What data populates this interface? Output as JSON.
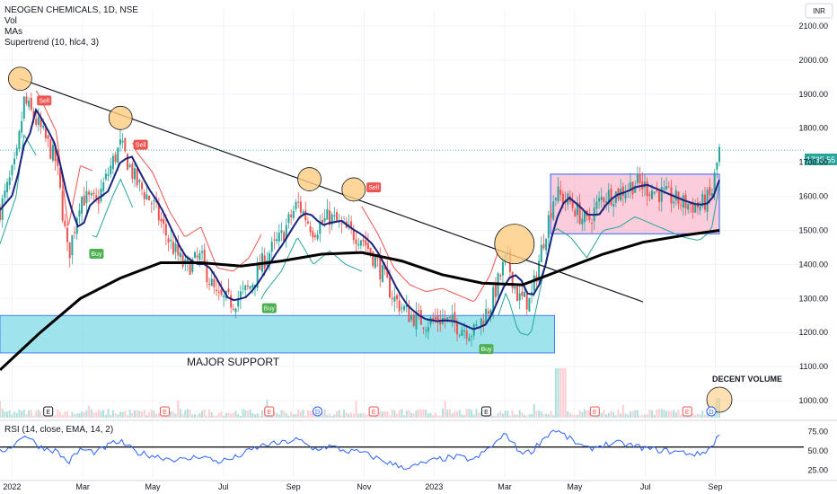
{
  "chart_data": {
    "type": "candlestick",
    "title": "NEOGEN CHEMICALS, 1D, NSE",
    "indicators": [
      "Vol",
      "MAs",
      "Supertrend (10, hlc4, 3)"
    ],
    "currency": "INR",
    "last_price": "1735.55",
    "y_ticks": [
      "2100.00",
      "2000.00",
      "1900.00",
      "1800.00",
      "1700.00",
      "1600.00",
      "1500.00",
      "1400.00",
      "1300.00",
      "1200.00",
      "1100.00",
      "1000.00"
    ],
    "ylim": [
      950,
      2150
    ],
    "x_ticks": [
      "2022",
      "Mar",
      "May",
      "Jul",
      "Sep",
      "Nov",
      "2023",
      "Mar",
      "May",
      "Jul",
      "Sep"
    ],
    "price_path": [
      {
        "t": 0.0,
        "p": 1560
      },
      {
        "t": 0.02,
        "p": 1700
      },
      {
        "t": 0.03,
        "p": 1880
      },
      {
        "t": 0.05,
        "p": 1800
      },
      {
        "t": 0.07,
        "p": 1700
      },
      {
        "t": 0.085,
        "p": 1420
      },
      {
        "t": 0.1,
        "p": 1600
      },
      {
        "t": 0.12,
        "p": 1580
      },
      {
        "t": 0.14,
        "p": 1700
      },
      {
        "t": 0.15,
        "p": 1750
      },
      {
        "t": 0.17,
        "p": 1640
      },
      {
        "t": 0.19,
        "p": 1580
      },
      {
        "t": 0.21,
        "p": 1470
      },
      {
        "t": 0.23,
        "p": 1390
      },
      {
        "t": 0.25,
        "p": 1420
      },
      {
        "t": 0.27,
        "p": 1300
      },
      {
        "t": 0.29,
        "p": 1290
      },
      {
        "t": 0.31,
        "p": 1330
      },
      {
        "t": 0.33,
        "p": 1420
      },
      {
        "t": 0.35,
        "p": 1480
      },
      {
        "t": 0.37,
        "p": 1580
      },
      {
        "t": 0.39,
        "p": 1500
      },
      {
        "t": 0.41,
        "p": 1540
      },
      {
        "t": 0.43,
        "p": 1500
      },
      {
        "t": 0.45,
        "p": 1480
      },
      {
        "t": 0.47,
        "p": 1400
      },
      {
        "t": 0.49,
        "p": 1300
      },
      {
        "t": 0.51,
        "p": 1250
      },
      {
        "t": 0.53,
        "p": 1230
      },
      {
        "t": 0.55,
        "p": 1240
      },
      {
        "t": 0.57,
        "p": 1220
      },
      {
        "t": 0.59,
        "p": 1200
      },
      {
        "t": 0.61,
        "p": 1280
      },
      {
        "t": 0.63,
        "p": 1420
      },
      {
        "t": 0.645,
        "p": 1300
      },
      {
        "t": 0.66,
        "p": 1290
      },
      {
        "t": 0.675,
        "p": 1460
      },
      {
        "t": 0.69,
        "p": 1610
      },
      {
        "t": 0.71,
        "p": 1580
      },
      {
        "t": 0.73,
        "p": 1520
      },
      {
        "t": 0.75,
        "p": 1600
      },
      {
        "t": 0.77,
        "p": 1610
      },
      {
        "t": 0.79,
        "p": 1640
      },
      {
        "t": 0.81,
        "p": 1620
      },
      {
        "t": 0.83,
        "p": 1600
      },
      {
        "t": 0.85,
        "p": 1580
      },
      {
        "t": 0.87,
        "p": 1570
      },
      {
        "t": 0.885,
        "p": 1600
      },
      {
        "t": 0.895,
        "p": 1735
      }
    ],
    "ma_200_path": [
      {
        "t": 0.0,
        "p": 1090
      },
      {
        "t": 0.05,
        "p": 1200
      },
      {
        "t": 0.1,
        "p": 1300
      },
      {
        "t": 0.15,
        "p": 1360
      },
      {
        "t": 0.2,
        "p": 1405
      },
      {
        "t": 0.25,
        "p": 1405
      },
      {
        "t": 0.3,
        "p": 1395
      },
      {
        "t": 0.35,
        "p": 1410
      },
      {
        "t": 0.4,
        "p": 1430
      },
      {
        "t": 0.45,
        "p": 1435
      },
      {
        "t": 0.5,
        "p": 1410
      },
      {
        "t": 0.55,
        "p": 1370
      },
      {
        "t": 0.6,
        "p": 1345
      },
      {
        "t": 0.65,
        "p": 1340
      },
      {
        "t": 0.7,
        "p": 1385
      },
      {
        "t": 0.75,
        "p": 1430
      },
      {
        "t": 0.8,
        "p": 1465
      },
      {
        "t": 0.85,
        "p": 1485
      },
      {
        "t": 0.895,
        "p": 1500
      }
    ],
    "trendline": {
      "from": {
        "t": 0.025,
        "p": 1945
      },
      "to": {
        "t": 0.8,
        "p": 1290
      }
    },
    "resistance_touches": [
      {
        "t": 0.025,
        "p": 1945
      },
      {
        "t": 0.15,
        "p": 1830
      },
      {
        "t": 0.385,
        "p": 1650
      },
      {
        "t": 0.44,
        "p": 1620
      },
      {
        "t": 0.64,
        "p": 1460
      }
    ],
    "major_support": {
      "price_from": 1140,
      "price_to": 1250,
      "t_from": 0.0,
      "t_to": 0.69,
      "label": "MAJOR SUPPORT"
    },
    "consolidation_box": {
      "price_from": 1490,
      "price_to": 1665,
      "t_from": 0.685,
      "t_to": 0.895
    },
    "signals": [
      {
        "label": "Sell",
        "t": 0.055,
        "p": 1880,
        "type": "sell"
      },
      {
        "label": "Sell",
        "t": 0.175,
        "p": 1750,
        "type": "sell"
      },
      {
        "label": "Sell",
        "t": 0.465,
        "p": 1625,
        "type": "sell"
      },
      {
        "label": "Buy",
        "t": 0.12,
        "p": 1430,
        "type": "buy"
      },
      {
        "label": "Buy",
        "t": 0.335,
        "p": 1270,
        "type": "buy"
      },
      {
        "label": "Buy",
        "t": 0.605,
        "p": 1150,
        "type": "buy"
      }
    ],
    "events": [
      {
        "label": "E",
        "t": 0.06,
        "type": "earnings"
      },
      {
        "label": "E",
        "t": 0.205,
        "type": "div"
      },
      {
        "label": "E",
        "t": 0.335,
        "type": "div"
      },
      {
        "label": "D",
        "t": 0.395,
        "type": "dividend"
      },
      {
        "label": "E",
        "t": 0.465,
        "type": "div"
      },
      {
        "label": "E",
        "t": 0.605,
        "type": "earnings"
      },
      {
        "label": "E",
        "t": 0.74,
        "type": "div"
      },
      {
        "label": "E",
        "t": 0.855,
        "type": "div"
      },
      {
        "label": "D",
        "t": 0.885,
        "type": "dividend"
      }
    ],
    "volume_note": "DECENT VOLUME",
    "rsi": {
      "label": "RSI (14, close, EMA, 14, 2)",
      "y_ticks": [
        "75.00",
        "50.00",
        "25.00"
      ],
      "ylim": [
        15,
        85
      ],
      "reference_level": 55,
      "path": [
        {
          "t": 0.0,
          "p": 48
        },
        {
          "t": 0.02,
          "p": 60
        },
        {
          "t": 0.03,
          "p": 72
        },
        {
          "t": 0.05,
          "p": 55
        },
        {
          "t": 0.07,
          "p": 50
        },
        {
          "t": 0.085,
          "p": 35
        },
        {
          "t": 0.1,
          "p": 52
        },
        {
          "t": 0.12,
          "p": 48
        },
        {
          "t": 0.14,
          "p": 60
        },
        {
          "t": 0.15,
          "p": 62
        },
        {
          "t": 0.17,
          "p": 48
        },
        {
          "t": 0.19,
          "p": 44
        },
        {
          "t": 0.21,
          "p": 40
        },
        {
          "t": 0.23,
          "p": 38
        },
        {
          "t": 0.25,
          "p": 44
        },
        {
          "t": 0.27,
          "p": 36
        },
        {
          "t": 0.29,
          "p": 40
        },
        {
          "t": 0.31,
          "p": 50
        },
        {
          "t": 0.33,
          "p": 58
        },
        {
          "t": 0.35,
          "p": 60
        },
        {
          "t": 0.37,
          "p": 65
        },
        {
          "t": 0.39,
          "p": 52
        },
        {
          "t": 0.41,
          "p": 56
        },
        {
          "t": 0.43,
          "p": 50
        },
        {
          "t": 0.45,
          "p": 48
        },
        {
          "t": 0.47,
          "p": 40
        },
        {
          "t": 0.49,
          "p": 32
        },
        {
          "t": 0.51,
          "p": 28
        },
        {
          "t": 0.53,
          "p": 35
        },
        {
          "t": 0.55,
          "p": 40
        },
        {
          "t": 0.57,
          "p": 42
        },
        {
          "t": 0.59,
          "p": 38
        },
        {
          "t": 0.61,
          "p": 55
        },
        {
          "t": 0.63,
          "p": 72
        },
        {
          "t": 0.645,
          "p": 50
        },
        {
          "t": 0.66,
          "p": 48
        },
        {
          "t": 0.675,
          "p": 65
        },
        {
          "t": 0.69,
          "p": 78
        },
        {
          "t": 0.71,
          "p": 65
        },
        {
          "t": 0.73,
          "p": 52
        },
        {
          "t": 0.75,
          "p": 58
        },
        {
          "t": 0.77,
          "p": 60
        },
        {
          "t": 0.79,
          "p": 56
        },
        {
          "t": 0.81,
          "p": 52
        },
        {
          "t": 0.83,
          "p": 50
        },
        {
          "t": 0.85,
          "p": 48
        },
        {
          "t": 0.87,
          "p": 45
        },
        {
          "t": 0.885,
          "p": 55
        },
        {
          "t": 0.895,
          "p": 72
        }
      ]
    }
  }
}
